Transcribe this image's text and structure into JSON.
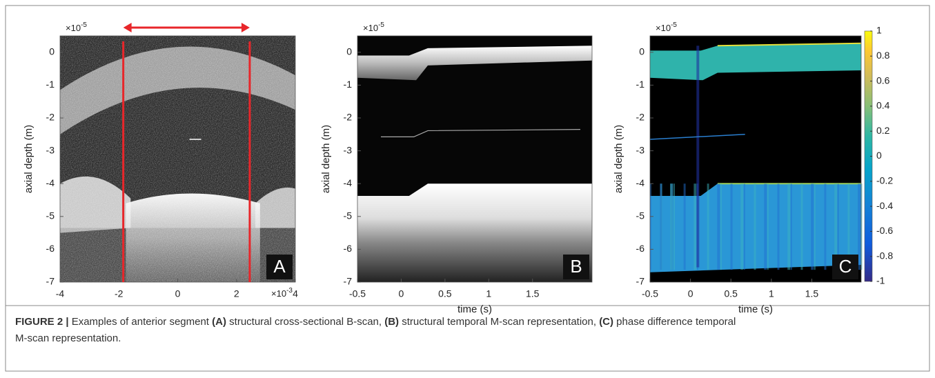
{
  "chart_data": [
    {
      "type": "image",
      "panel_label": "A",
      "ylabel": "axial depth (m)",
      "y_multiplier": {
        "base": "×10",
        "exponent": "-5"
      },
      "x_multiplier": {
        "base": "×10",
        "exponent": "-3"
      },
      "xlim": [
        -4,
        4
      ],
      "ylim": [
        -7,
        0.5
      ],
      "xticks": [
        -4,
        -2,
        0,
        2,
        4
      ],
      "yticks": [
        -7,
        -6,
        -5,
        -4,
        -3,
        -2,
        -1,
        0
      ],
      "markers": {
        "color": "#e8262a",
        "x": [
          -1.85,
          2.45
        ]
      }
    },
    {
      "type": "image",
      "panel_label": "B",
      "ylabel": "axial depth (m)",
      "xlabel": "time (s)",
      "y_multiplier": {
        "base": "×10",
        "exponent": "-5"
      },
      "xlim": [
        -0.5,
        2.18
      ],
      "ylim": [
        -7,
        0.5
      ],
      "xticks": [
        -0.5,
        0,
        0.5,
        1,
        1.5
      ],
      "yticks": [
        -7,
        -6,
        -5,
        -4,
        -3,
        -2,
        -1,
        0
      ]
    },
    {
      "type": "image",
      "panel_label": "C",
      "ylabel": "axial depth (m)",
      "xlabel": "time (s)",
      "y_multiplier": {
        "base": "×10",
        "exponent": "-5"
      },
      "xlim": [
        -0.5,
        2.11
      ],
      "ylim": [
        -7,
        0.5
      ],
      "xticks": [
        -0.5,
        0,
        0.5,
        1,
        1.5
      ],
      "yticks": [
        -7,
        -6,
        -5,
        -4,
        -3,
        -2,
        -1,
        0
      ],
      "colorbar": {
        "clim": [
          -1,
          1
        ],
        "ticks": [
          -1,
          -0.8,
          -0.6,
          -0.4,
          -0.2,
          0,
          0.2,
          0.4,
          0.6,
          0.8,
          1
        ]
      }
    }
  ],
  "caption": {
    "lines": [
      [
        {
          "text": "FIGURE 2 |",
          "bold": true
        },
        {
          "text": " Examples of anterior segment ",
          "bold": false
        },
        {
          "text": "(A)",
          "bold": true
        },
        {
          "text": " structural cross-sectional B-scan, ",
          "bold": false
        },
        {
          "text": "(B)",
          "bold": true
        },
        {
          "text": " structural temporal M-scan representation, ",
          "bold": false
        },
        {
          "text": "(C)",
          "bold": true
        },
        {
          "text": " phase difference temporal",
          "bold": false
        }
      ],
      [
        {
          "text": "M-scan representation.",
          "bold": false
        }
      ]
    ]
  }
}
